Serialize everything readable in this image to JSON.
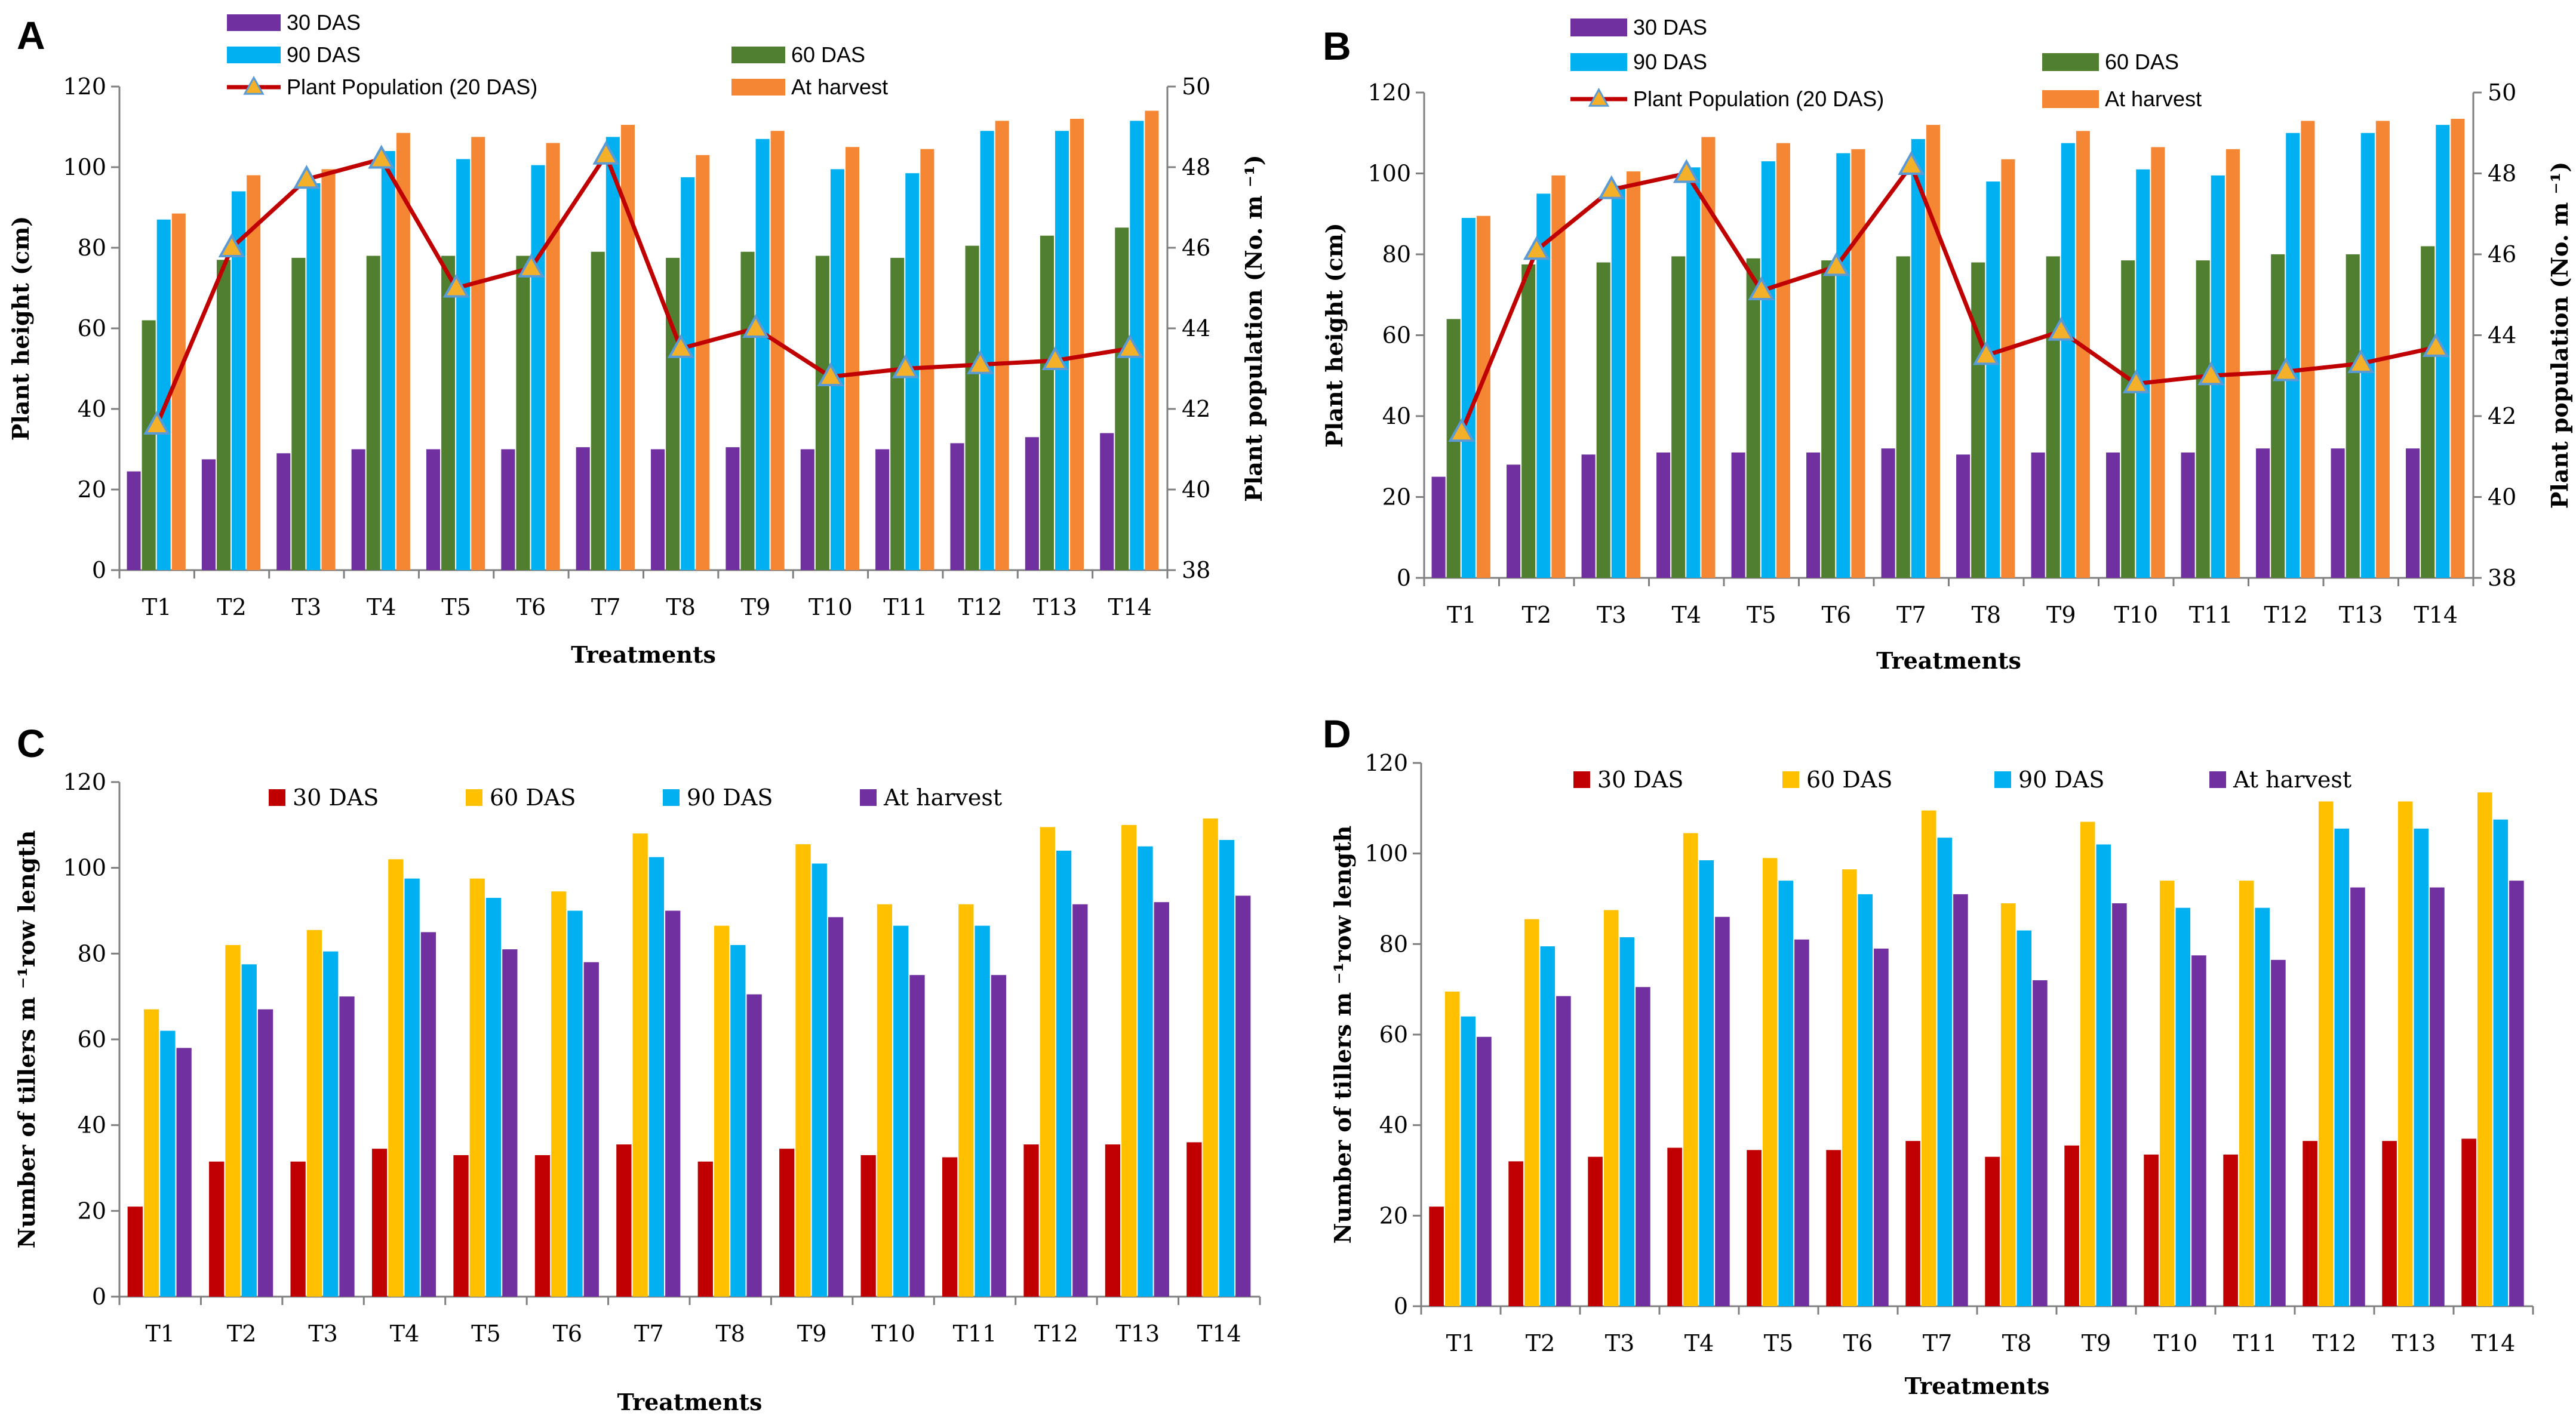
{
  "colors": {
    "purple": "#7030A0",
    "green": "#4F7F2F",
    "blue": "#00B0F0",
    "orange": "#F58634",
    "red": "#C00000",
    "yellow": "#FFC000",
    "line": "#C00000",
    "marker": "#F5B02A",
    "marker_edge": "#5B9BD5"
  },
  "chart_data": [
    {
      "panel": "A",
      "type": "bar",
      "categories": [
        "T1",
        "T2",
        "T3",
        "T4",
        "T5",
        "T6",
        "T7",
        "T8",
        "T9",
        "T10",
        "T11",
        "T12",
        "T13",
        "T14"
      ],
      "series": [
        {
          "name": "30 DAS",
          "color": "purple",
          "values": [
            24.5,
            27.5,
            29,
            30,
            30,
            30,
            30.5,
            30,
            30.5,
            30,
            30,
            31.5,
            33,
            34
          ]
        },
        {
          "name": "60 DAS",
          "color": "green",
          "values": [
            62,
            77,
            77.5,
            78,
            78,
            78,
            79,
            77.5,
            79,
            78,
            77.5,
            80.5,
            83,
            85
          ]
        },
        {
          "name": "90 DAS",
          "color": "blue",
          "values": [
            87,
            94,
            96,
            104,
            102,
            100.5,
            107.5,
            97.5,
            107,
            99.5,
            98.5,
            109,
            109,
            111.5
          ]
        },
        {
          "name": "At harvest",
          "color": "orange",
          "values": [
            88.5,
            98,
            99.5,
            108.5,
            107.5,
            106,
            110.5,
            103,
            109,
            105,
            104.5,
            111.5,
            112,
            114
          ]
        }
      ],
      "line_series": {
        "name": "Plant Population (20 DAS)",
        "values": [
          41.6,
          46,
          47.7,
          48.2,
          45,
          45.5,
          48.3,
          43.5,
          44,
          42.8,
          43,
          43.1,
          43.2,
          43.5
        ]
      },
      "xlabel": "Treatments",
      "ylabel": "Plant height (cm)",
      "y2label": "Plant population (No. m ⁻¹)",
      "ylim": [
        0,
        120
      ],
      "yticks": [
        0,
        20,
        40,
        60,
        80,
        100,
        120
      ],
      "y2lim": [
        38,
        50
      ],
      "y2ticks": [
        38,
        40,
        42,
        44,
        46,
        48,
        50
      ]
    },
    {
      "panel": "B",
      "type": "bar",
      "categories": [
        "T1",
        "T2",
        "T3",
        "T4",
        "T5",
        "T6",
        "T7",
        "T8",
        "T9",
        "T10",
        "T11",
        "T12",
        "T13",
        "T14"
      ],
      "series": [
        {
          "name": "30 DAS",
          "color": "purple",
          "values": [
            25,
            28,
            30.5,
            31,
            31,
            31,
            32,
            30.5,
            31,
            31,
            31,
            32,
            32,
            32
          ]
        },
        {
          "name": "60 DAS",
          "color": "green",
          "values": [
            64,
            77.5,
            78,
            79.5,
            79,
            78.5,
            79.5,
            78,
            79.5,
            78.5,
            78.5,
            80,
            80,
            82
          ]
        },
        {
          "name": "90 DAS",
          "color": "blue",
          "values": [
            89,
            95,
            97,
            101.5,
            103,
            105,
            108.5,
            98,
            107.5,
            101,
            99.5,
            110,
            110,
            112
          ]
        },
        {
          "name": "At harvest",
          "color": "orange",
          "values": [
            89.5,
            99.5,
            100.5,
            109,
            107.5,
            106,
            112,
            103.5,
            110.5,
            106.5,
            106,
            113,
            113,
            113.5
          ]
        }
      ],
      "line_series": {
        "name": "Plant Population (20 DAS)",
        "values": [
          41.6,
          46.1,
          47.6,
          48,
          45.1,
          45.7,
          48.2,
          43.5,
          44.1,
          42.8,
          43,
          43.1,
          43.3,
          43.7
        ]
      },
      "xlabel": "Treatments",
      "ylabel": "Plant height (cm)",
      "y2label": "Plant population (No. m ⁻¹)",
      "ylim": [
        0,
        120
      ],
      "yticks": [
        0,
        20,
        40,
        60,
        80,
        100,
        120
      ],
      "y2lim": [
        38,
        50
      ],
      "y2ticks": [
        38,
        40,
        42,
        44,
        46,
        48,
        50
      ]
    },
    {
      "panel": "C",
      "type": "bar",
      "categories": [
        "T1",
        "T2",
        "T3",
        "T4",
        "T5",
        "T6",
        "T7",
        "T8",
        "T9",
        "T10",
        "T11",
        "T12",
        "T13",
        "T14"
      ],
      "series": [
        {
          "name": "30 DAS",
          "color": "red",
          "values": [
            21,
            31.5,
            31.5,
            34.5,
            33,
            33,
            35.5,
            31.5,
            34.5,
            33,
            32.5,
            35.5,
            35.5,
            36
          ]
        },
        {
          "name": "60 DAS",
          "color": "yellow",
          "values": [
            67,
            82,
            85.5,
            102,
            97.5,
            94.5,
            108,
            86.5,
            105.5,
            91.5,
            91.5,
            109.5,
            110,
            111.5
          ]
        },
        {
          "name": "90 DAS",
          "color": "blue",
          "values": [
            62,
            77.5,
            80.5,
            97.5,
            93,
            90,
            102.5,
            82,
            101,
            86.5,
            86.5,
            104,
            105,
            106.5
          ]
        },
        {
          "name": "At harvest",
          "color": "purple",
          "values": [
            58,
            67,
            70,
            85,
            81,
            78,
            90,
            70.5,
            88.5,
            75,
            75,
            91.5,
            92,
            93.5
          ]
        }
      ],
      "xlabel": "Treatments",
      "ylabel": "Number of tillers m ⁻¹row length",
      "ylim": [
        0,
        120
      ],
      "yticks": [
        0,
        20,
        40,
        60,
        80,
        100,
        120
      ]
    },
    {
      "panel": "D",
      "type": "bar",
      "categories": [
        "T1",
        "T2",
        "T3",
        "T4",
        "T5",
        "T6",
        "T7",
        "T8",
        "T9",
        "T10",
        "T11",
        "T12",
        "T13",
        "T14"
      ],
      "series": [
        {
          "name": "30 DAS",
          "color": "red",
          "values": [
            22,
            32,
            33,
            35,
            34.5,
            34.5,
            36.5,
            33,
            35.5,
            33.5,
            33.5,
            36.5,
            36.5,
            37
          ]
        },
        {
          "name": "60 DAS",
          "color": "yellow",
          "values": [
            69.5,
            85.5,
            87.5,
            104.5,
            99,
            96.5,
            109.5,
            89,
            107,
            94,
            94,
            111.5,
            111.5,
            113.5
          ]
        },
        {
          "name": "90 DAS",
          "color": "blue",
          "values": [
            64,
            79.5,
            81.5,
            98.5,
            94,
            91,
            103.5,
            83,
            102,
            88,
            88,
            105.5,
            105.5,
            107.5
          ]
        },
        {
          "name": "At harvest",
          "color": "purple",
          "values": [
            59.5,
            68.5,
            70.5,
            86,
            81,
            79,
            91,
            72,
            89,
            77.5,
            76.5,
            92.5,
            92.5,
            94
          ]
        }
      ],
      "xlabel": "Treatments",
      "ylabel": "Number of tillers m ⁻¹row length",
      "ylim": [
        0,
        120
      ],
      "yticks": [
        0,
        20,
        40,
        60,
        80,
        100,
        120
      ]
    }
  ]
}
